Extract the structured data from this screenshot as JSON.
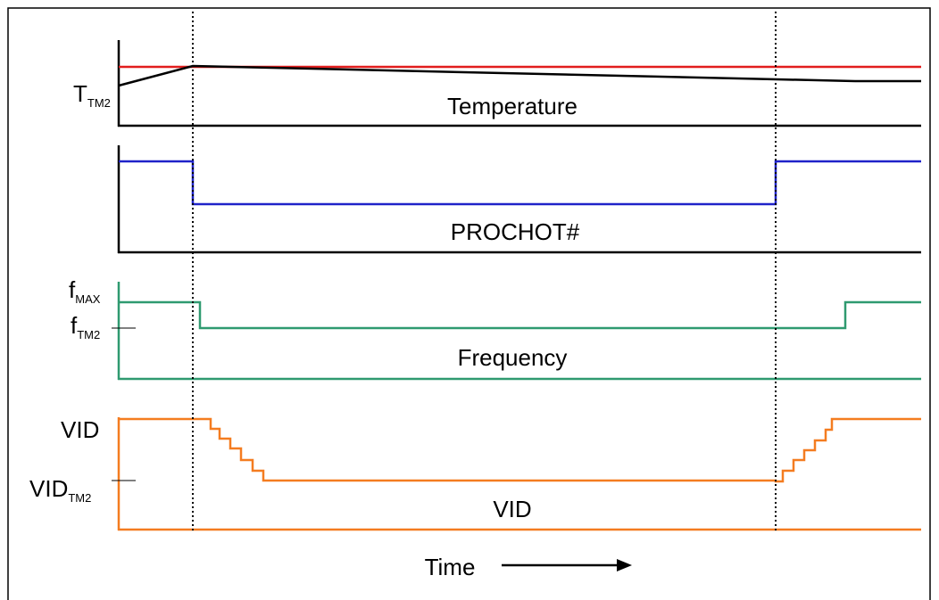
{
  "labels": {
    "t_tm2_main": "T",
    "t_tm2_sub": "TM2",
    "temperature": "Temperature",
    "prochot": "PROCHOT#",
    "fmax_main": "f",
    "fmax_sub": "MAX",
    "ftm2_main": "f",
    "ftm2_sub": "TM2",
    "frequency": "Frequency",
    "vid_axis": "VID",
    "vid_tm2_main": "VID",
    "vid_tm2_sub": "TM2",
    "vid_panel": "VID",
    "time": "Time"
  },
  "colors": {
    "threshold": "#e21d1d",
    "temperature": "#000000",
    "prochot": "#1f22c9",
    "frequency": "#2f9a70",
    "vid": "#f47c20",
    "axis": "#000000"
  },
  "signals": {
    "temperature_threshold": "T_TM2 (constant)",
    "prochot_levels": [
      "high",
      "low",
      "high"
    ],
    "frequency_levels": [
      "f_MAX",
      "f_TM2",
      "f_MAX"
    ],
    "vid_levels": [
      "VID",
      "VID_TM2",
      "VID"
    ]
  }
}
